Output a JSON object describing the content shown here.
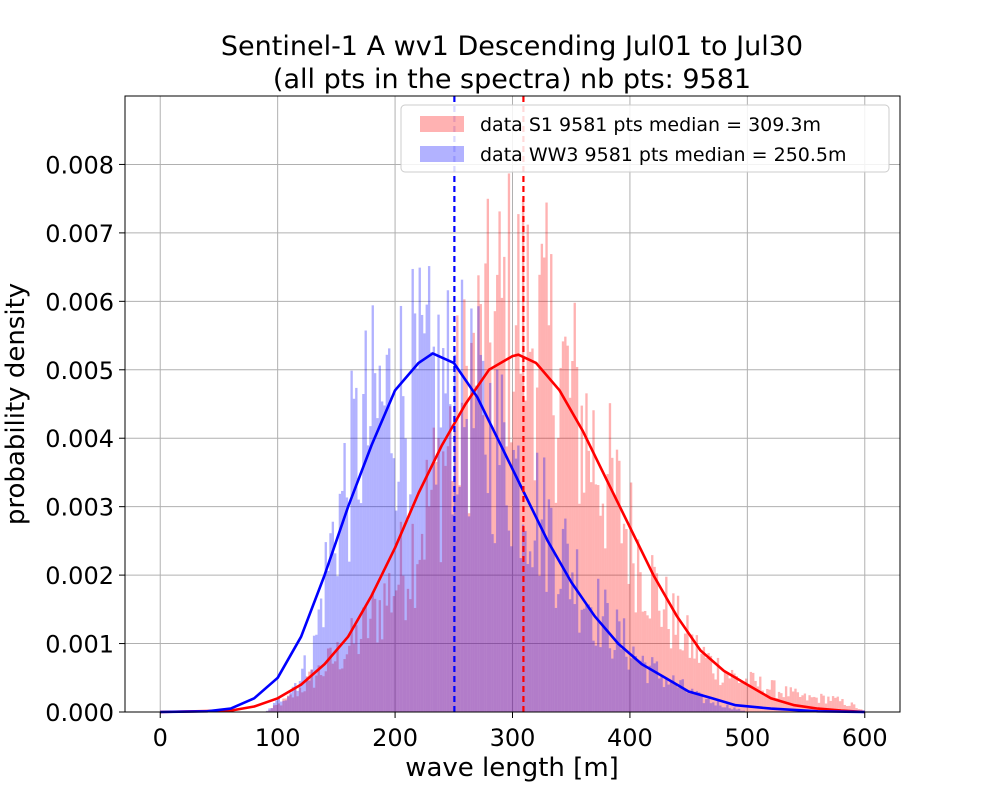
{
  "chart_data": {
    "type": "bar",
    "title": "Sentinel-1 A wv1 Descending Jul01 to Jul30",
    "subtitle": "(all pts in the spectra) nb pts: 9581",
    "xlabel": "wave length [m]",
    "ylabel": "probability density",
    "xlim": [
      -30,
      630
    ],
    "ylim": [
      0,
      0.009
    ],
    "xticks": [
      "0",
      "100",
      "200",
      "300",
      "400",
      "500",
      "600"
    ],
    "yticks": [
      "0.000",
      "0.001",
      "0.002",
      "0.003",
      "0.004",
      "0.005",
      "0.006",
      "0.007",
      "0.008"
    ],
    "grid": true,
    "legend_position": "top-right",
    "bin_width": 2,
    "series": [
      {
        "name": "data S1 9581 pts median = 309.3m",
        "kind": "histogram",
        "color": "#ff0000",
        "opacity": 0.3,
        "median": 309.3,
        "fit_peak": {
          "x": 305,
          "y": 0.00522
        },
        "envelope": [
          [
            90,
            0
          ],
          [
            110,
            0.0002
          ],
          [
            130,
            0.0005
          ],
          [
            150,
            0.0008
          ],
          [
            170,
            0.0011
          ],
          [
            190,
            0.0016
          ],
          [
            210,
            0.0022
          ],
          [
            230,
            0.0031
          ],
          [
            250,
            0.0041
          ],
          [
            270,
            0.0051
          ],
          [
            290,
            0.0057
          ],
          [
            300,
            0.0059
          ],
          [
            310,
            0.0058
          ],
          [
            330,
            0.0053
          ],
          [
            350,
            0.0046
          ],
          [
            370,
            0.0038
          ],
          [
            390,
            0.003
          ],
          [
            410,
            0.0022
          ],
          [
            430,
            0.0015
          ],
          [
            450,
            0.001
          ],
          [
            470,
            0.0007
          ],
          [
            490,
            0.0005
          ],
          [
            510,
            0.0004
          ],
          [
            530,
            0.0003
          ],
          [
            550,
            0.0002
          ],
          [
            570,
            0.0002
          ],
          [
            590,
            0.0001
          ],
          [
            600,
            0
          ]
        ]
      },
      {
        "name": "data WW3 9581 pts median = 250.5m",
        "kind": "histogram",
        "color": "#0000ff",
        "opacity": 0.3,
        "median": 250.5,
        "fit_peak": {
          "x": 232,
          "y": 0.00524
        },
        "envelope": [
          [
            90,
            0
          ],
          [
            110,
            0.0003
          ],
          [
            130,
            0.0008
          ],
          [
            140,
            0.0019
          ],
          [
            150,
            0.0028
          ],
          [
            160,
            0.0034
          ],
          [
            170,
            0.004
          ],
          [
            180,
            0.0043
          ],
          [
            200,
            0.0046
          ],
          [
            220,
            0.0047
          ],
          [
            240,
            0.0047
          ],
          [
            260,
            0.0045
          ],
          [
            280,
            0.0041
          ],
          [
            300,
            0.0036
          ],
          [
            320,
            0.003
          ],
          [
            340,
            0.0024
          ],
          [
            360,
            0.0018
          ],
          [
            380,
            0.0013
          ],
          [
            400,
            0.0009
          ],
          [
            420,
            0.0006
          ],
          [
            440,
            0.0004
          ],
          [
            460,
            0.0002
          ],
          [
            480,
            0.0001
          ],
          [
            500,
            0
          ]
        ]
      }
    ],
    "fit_curves": [
      {
        "color": "#ff0000",
        "points": [
          [
            0,
            0
          ],
          [
            60,
            2e-05
          ],
          [
            80,
            8e-05
          ],
          [
            100,
            0.0002
          ],
          [
            120,
            0.0004
          ],
          [
            140,
            0.0007
          ],
          [
            160,
            0.0011
          ],
          [
            180,
            0.0017
          ],
          [
            200,
            0.0024
          ],
          [
            220,
            0.0032
          ],
          [
            240,
            0.0039
          ],
          [
            260,
            0.0045
          ],
          [
            280,
            0.005
          ],
          [
            300,
            0.0052
          ],
          [
            305,
            0.00522
          ],
          [
            320,
            0.0051
          ],
          [
            340,
            0.0047
          ],
          [
            360,
            0.0041
          ],
          [
            380,
            0.0034
          ],
          [
            400,
            0.0027
          ],
          [
            420,
            0.002
          ],
          [
            440,
            0.0014
          ],
          [
            460,
            0.0009
          ],
          [
            480,
            0.0006
          ],
          [
            500,
            0.0004
          ],
          [
            520,
            0.0002
          ],
          [
            540,
            0.0001
          ],
          [
            560,
            5e-05
          ],
          [
            580,
            2e-05
          ],
          [
            600,
            0
          ]
        ]
      },
      {
        "color": "#0000ff",
        "points": [
          [
            0,
            0
          ],
          [
            40,
            1e-05
          ],
          [
            60,
            5e-05
          ],
          [
            80,
            0.0002
          ],
          [
            100,
            0.0005
          ],
          [
            120,
            0.0011
          ],
          [
            140,
            0.002
          ],
          [
            160,
            0.003
          ],
          [
            180,
            0.0039
          ],
          [
            200,
            0.0047
          ],
          [
            220,
            0.0051
          ],
          [
            232,
            0.00524
          ],
          [
            250,
            0.0051
          ],
          [
            270,
            0.0046
          ],
          [
            290,
            0.0039
          ],
          [
            310,
            0.0032
          ],
          [
            330,
            0.0025
          ],
          [
            350,
            0.0019
          ],
          [
            370,
            0.0014
          ],
          [
            390,
            0.001
          ],
          [
            410,
            0.0007
          ],
          [
            430,
            0.0005
          ],
          [
            450,
            0.0003
          ],
          [
            470,
            0.0002
          ],
          [
            490,
            0.0001
          ],
          [
            520,
            5e-05
          ],
          [
            560,
            1e-05
          ],
          [
            600,
            0
          ]
        ]
      }
    ],
    "median_lines": [
      {
        "x": 309.3,
        "color": "#ff0000"
      },
      {
        "x": 250.5,
        "color": "#0000ff"
      }
    ]
  }
}
